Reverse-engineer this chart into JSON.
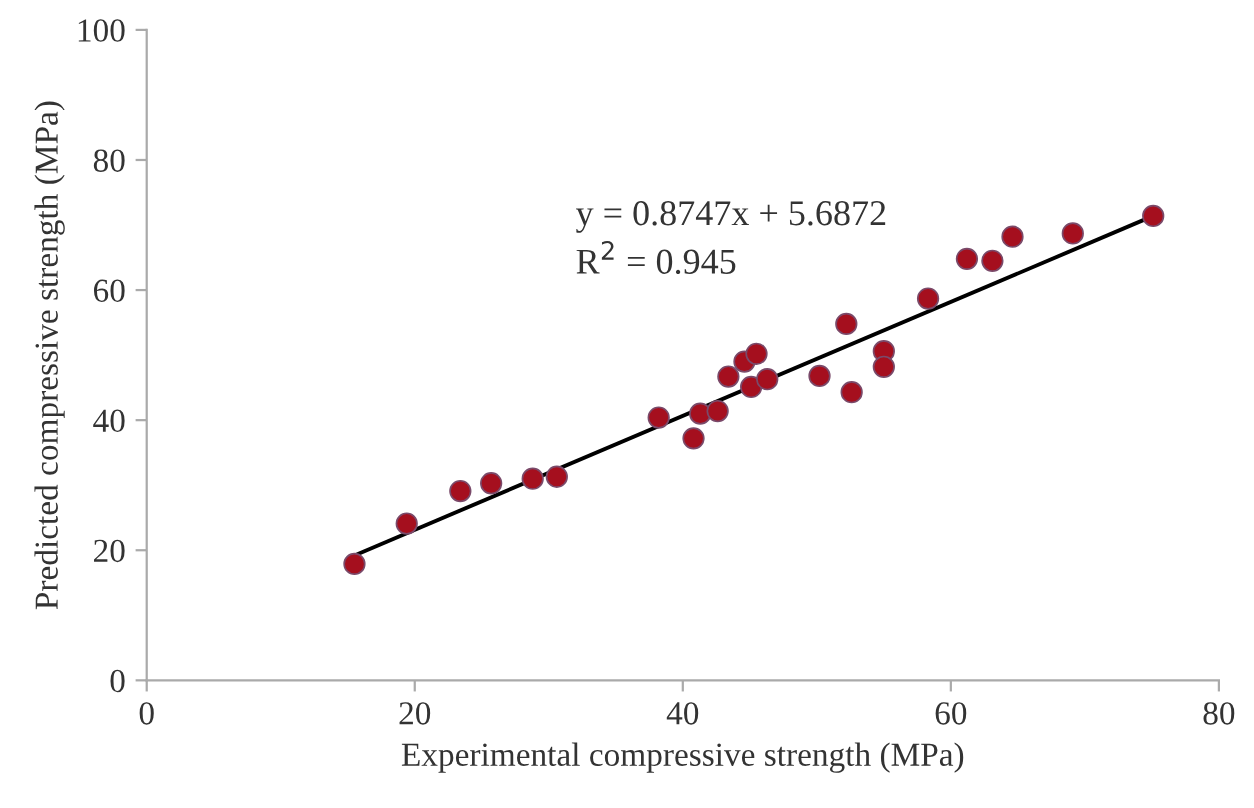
{
  "chart_data": {
    "type": "scatter",
    "xlabel": "Experimental compressive strength (MPa)",
    "ylabel": "Predicted compressive strength (MPa)",
    "xlim": [
      0,
      80
    ],
    "ylim": [
      0,
      100
    ],
    "xticks": [
      0,
      20,
      40,
      60,
      80
    ],
    "yticks": [
      0,
      20,
      40,
      60,
      80,
      100
    ],
    "grid": false,
    "legend": false,
    "annotations": [
      "y = 0.8747x + 5.6872",
      "R$^{2}$ = 0.945"
    ],
    "series": [
      {
        "marker": "circle",
        "color": "#a50f1e",
        "x": [
          15.5,
          19.4,
          23.4,
          25.7,
          28.8,
          30.6,
          38.2,
          40.8,
          41.3,
          42.6,
          43.4,
          44.6,
          45.5,
          45.1,
          46.3,
          50.2,
          52.2,
          52.6,
          55.0,
          55.0,
          58.3,
          61.2,
          63.1,
          64.6,
          69.1,
          75.1
        ],
        "values": [
          17.9,
          24.1,
          29.1,
          30.3,
          31.0,
          31.3,
          40.4,
          37.2,
          41.0,
          41.4,
          46.7,
          49.0,
          50.2,
          45.1,
          46.3,
          46.8,
          54.8,
          44.3,
          50.6,
          48.2,
          58.7,
          64.8,
          64.5,
          68.2,
          68.7,
          71.4
        ]
      },
      {
        "type": "line",
        "marker": "none",
        "color": "#000000",
        "line_style": "solid",
        "x": [
          15.5,
          75.1
        ],
        "values": [
          19.2,
          71.4
        ]
      }
    ]
  }
}
